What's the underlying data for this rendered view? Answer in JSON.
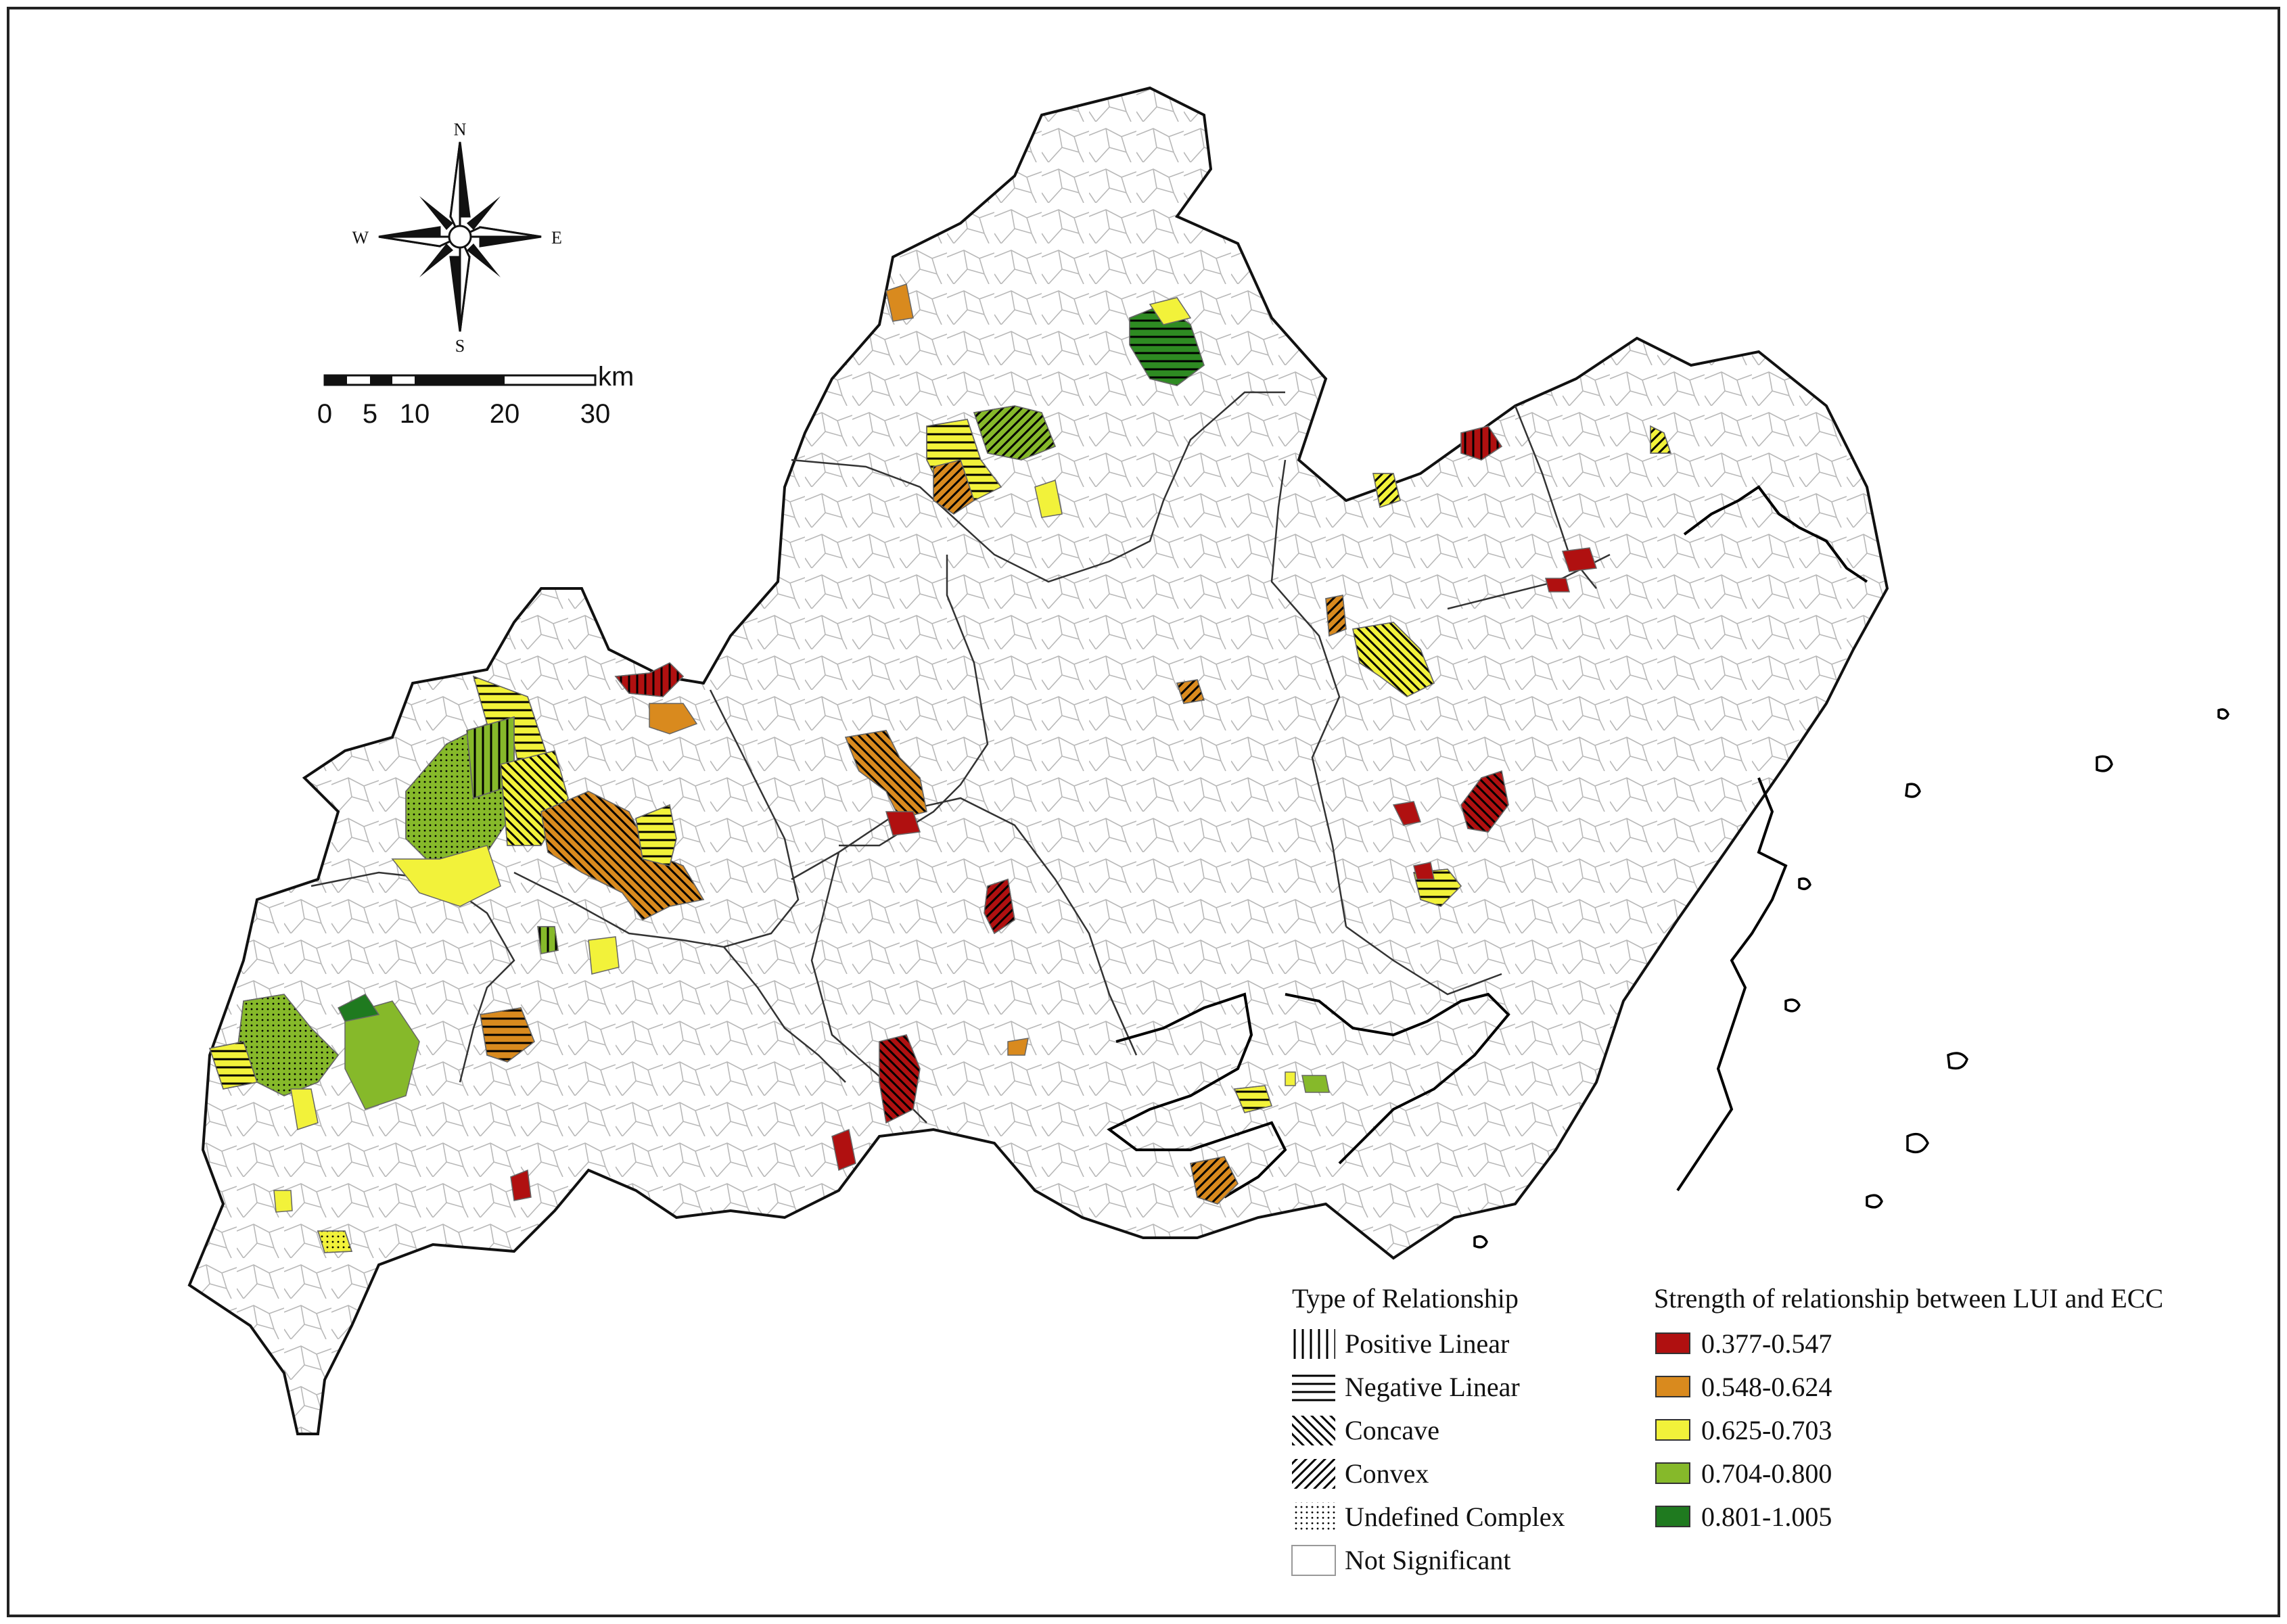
{
  "compass": {
    "north": "N",
    "south": "S",
    "east": "E",
    "west": "W"
  },
  "scale_bar": {
    "unit": "km",
    "ticks": [
      "0",
      "5",
      "10",
      "20",
      "30"
    ]
  },
  "legend_type": {
    "title": "Type of Relationship",
    "items": [
      {
        "label": "Positive Linear",
        "pattern": "vertical-lines"
      },
      {
        "label": "Negative Linear",
        "pattern": "horizontal-lines"
      },
      {
        "label": "Concave",
        "pattern": "diagonal-backslash"
      },
      {
        "label": "Convex",
        "pattern": "diagonal-slash"
      },
      {
        "label": "Undefined Complex",
        "pattern": "dots"
      },
      {
        "label": "Not Significant",
        "pattern": "none"
      }
    ]
  },
  "legend_strength": {
    "title": "Strength of relationship between LUI and ECC",
    "items": [
      {
        "label": "0.377-0.547",
        "color": "#b01010"
      },
      {
        "label": "0.548-0.624",
        "color": "#d98a1e"
      },
      {
        "label": "0.625-0.703",
        "color": "#f2f23a"
      },
      {
        "label": "0.704-0.800",
        "color": "#86b92a"
      },
      {
        "label": "0.801-1.005",
        "color": "#1f7a1f"
      }
    ]
  }
}
